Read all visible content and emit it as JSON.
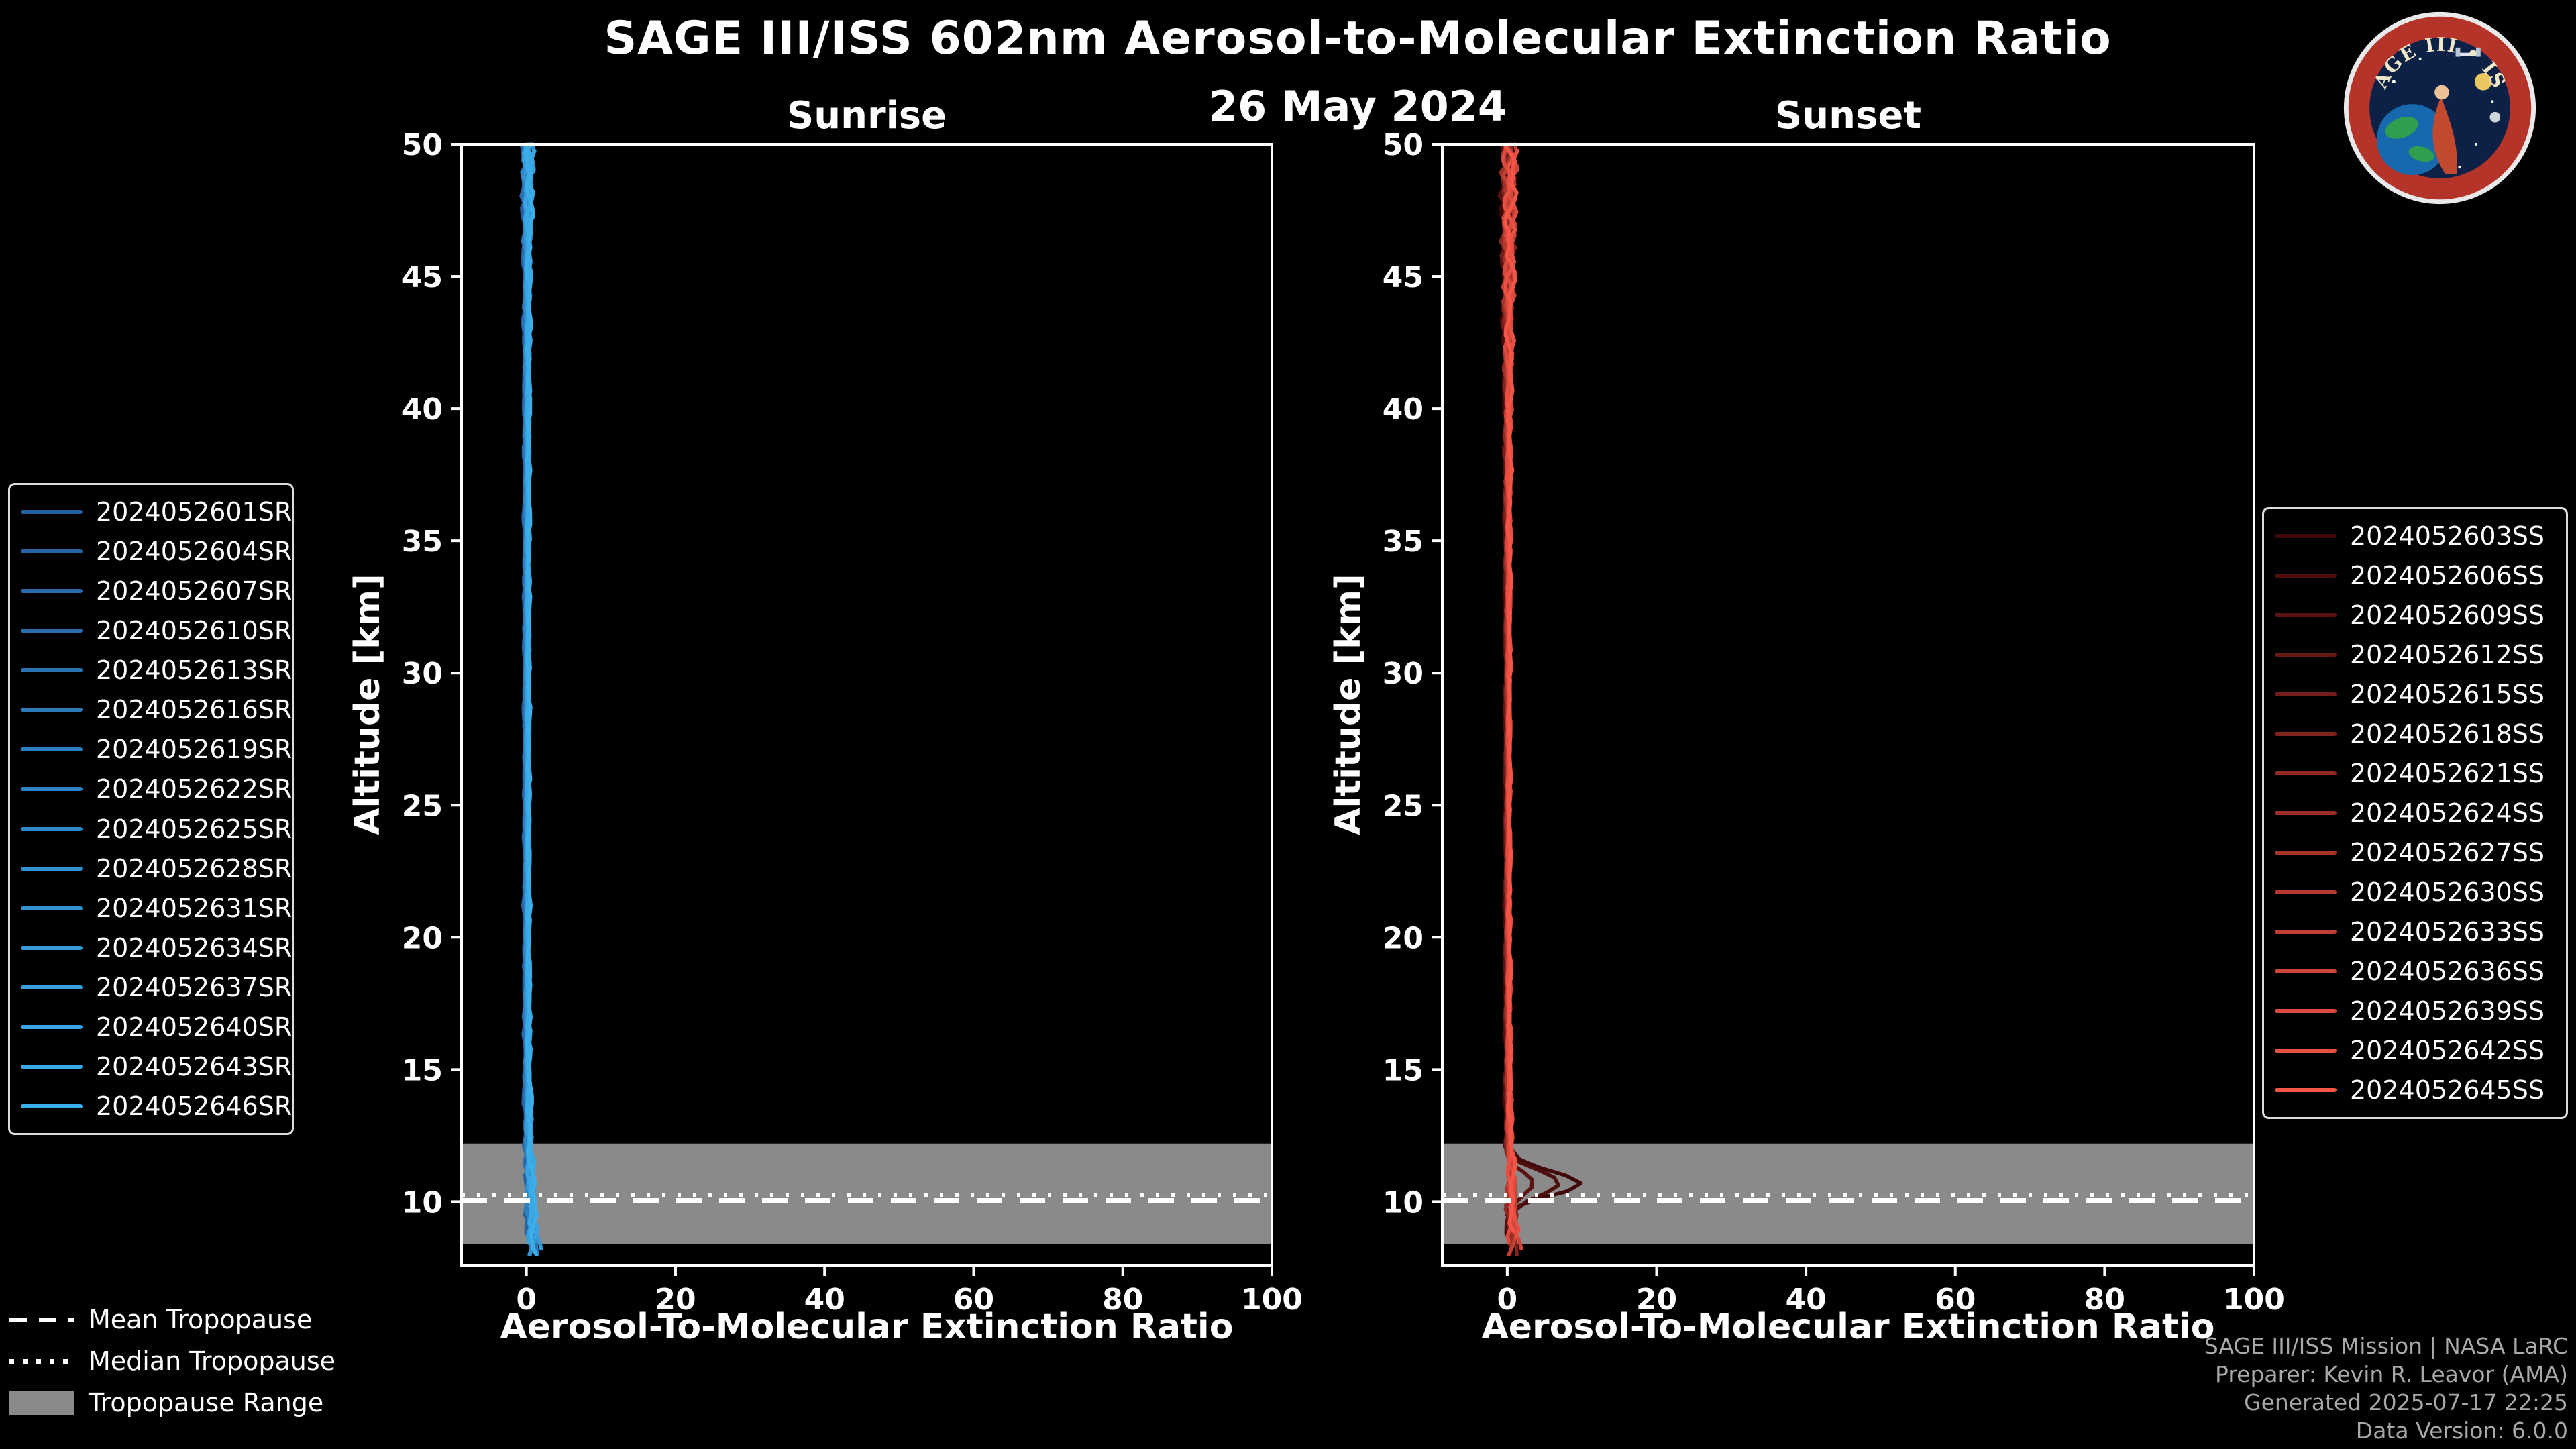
{
  "page": {
    "title": "SAGE III/ISS 602nm Aerosol-to-Molecular Extinction Ratio",
    "date": "26 May 2024",
    "background": "#000000",
    "text_color": "#ffffff"
  },
  "logo": {
    "text": "SAGE III • ISS"
  },
  "chart_data": [
    {
      "id": "sunrise",
      "type": "line",
      "title": "Sunrise",
      "xlabel": "Aerosol-To-Molecular Extinction Ratio",
      "ylabel": "Altitude [km]",
      "xlim": [
        -8.7,
        100
      ],
      "ylim": [
        7.6,
        50
      ],
      "xticks": [
        0,
        20,
        40,
        60,
        80,
        100
      ],
      "yticks": [
        10,
        15,
        20,
        25,
        30,
        35,
        40,
        45,
        50
      ],
      "legend_position": "left",
      "grid": false,
      "series": [
        {
          "name": "2024052601SR",
          "color": "#255FA0"
        },
        {
          "name": "2024052604SR",
          "color": "#2764A5"
        },
        {
          "name": "2024052607SR",
          "color": "#286AAA"
        },
        {
          "name": "2024052610SR",
          "color": "#2A6FAF"
        },
        {
          "name": "2024052613SR",
          "color": "#2B74B4"
        },
        {
          "name": "2024052616SR",
          "color": "#2D7AB9"
        },
        {
          "name": "2024052619SR",
          "color": "#2E7FBE"
        },
        {
          "name": "2024052622SR",
          "color": "#3084C3"
        },
        {
          "name": "2024052625SR",
          "color": "#318AC8"
        },
        {
          "name": "2024052628SR",
          "color": "#338FCD"
        },
        {
          "name": "2024052631SR",
          "color": "#3494D2"
        },
        {
          "name": "2024052634SR",
          "color": "#369AD7"
        },
        {
          "name": "2024052637SR",
          "color": "#379FDC"
        },
        {
          "name": "2024052640SR",
          "color": "#39A4E1"
        },
        {
          "name": "2024052643SR",
          "color": "#3AAAE6"
        },
        {
          "name": "2024052646SR",
          "color": "#3CAFEB"
        }
      ],
      "profile": {
        "altitude": [
          7.6,
          8.5,
          9.5,
          10.5,
          11.5,
          13,
          15,
          20,
          30,
          40,
          45,
          48,
          50
        ],
        "ratio": [
          1.4,
          1.3,
          1.0,
          0.8,
          0.55,
          0.35,
          0.2,
          0.12,
          0.1,
          0.12,
          0.15,
          0.25,
          0.3
        ],
        "spread": [
          0.85,
          0.8,
          0.7,
          0.65,
          0.55,
          0.45,
          0.35,
          0.28,
          0.26,
          0.3,
          0.4,
          0.7,
          0.95
        ]
      },
      "tropopause": {
        "mean_km": 10.05,
        "median_km": 10.25,
        "range_km": [
          8.4,
          12.2
        ],
        "band_color": "#8a8a8a"
      }
    },
    {
      "id": "sunset",
      "type": "line",
      "title": "Sunset",
      "xlabel": "Aerosol-To-Molecular Extinction Ratio",
      "ylabel": "Altitude [km]",
      "xlim": [
        -8.7,
        100
      ],
      "ylim": [
        7.6,
        50
      ],
      "xticks": [
        0,
        20,
        40,
        60,
        80,
        100
      ],
      "yticks": [
        10,
        15,
        20,
        25,
        30,
        35,
        40,
        45,
        50
      ],
      "legend_position": "right",
      "grid": false,
      "series": [
        {
          "name": "2024052603SS",
          "color": "#410808"
        },
        {
          "name": "2024052606SS",
          "color": "#4E0E0C"
        },
        {
          "name": "2024052609SS",
          "color": "#5B1311"
        },
        {
          "name": "2024052612SS",
          "color": "#681915"
        },
        {
          "name": "2024052615SS",
          "color": "#741E1A"
        },
        {
          "name": "2024052618SS",
          "color": "#81241E"
        },
        {
          "name": "2024052621SS",
          "color": "#8E2923"
        },
        {
          "name": "2024052624SS",
          "color": "#9B2F27"
        },
        {
          "name": "2024052627SS",
          "color": "#A8342B"
        },
        {
          "name": "2024052630SS",
          "color": "#B53A30"
        },
        {
          "name": "2024052633SS",
          "color": "#C23F34"
        },
        {
          "name": "2024052636SS",
          "color": "#CE4539"
        },
        {
          "name": "2024052639SS",
          "color": "#DB4A3D"
        },
        {
          "name": "2024052642SS",
          "color": "#E85042"
        },
        {
          "name": "2024052645SS",
          "color": "#F55546"
        }
      ],
      "profile": {
        "altitude": [
          7.6,
          8.5,
          9.5,
          10.5,
          11.5,
          13,
          15,
          20,
          30,
          40,
          45,
          48,
          50
        ],
        "ratio": [
          1.2,
          1.1,
          0.9,
          0.7,
          0.5,
          0.3,
          0.18,
          0.1,
          0.1,
          0.12,
          0.2,
          0.3,
          0.35
        ],
        "spread": [
          0.9,
          0.85,
          0.75,
          0.7,
          0.6,
          0.45,
          0.35,
          0.28,
          0.26,
          0.45,
          0.9,
          1.1,
          1.2
        ]
      },
      "bump": {
        "center_km": 10.7,
        "sigma_km": 0.45,
        "max_ratio": 10,
        "series_count": 3
      },
      "tropopause": {
        "mean_km": 10.05,
        "median_km": 10.25,
        "range_km": [
          8.4,
          12.2
        ],
        "band_color": "#8a8a8a"
      }
    }
  ],
  "tropopause_legend": {
    "items": [
      {
        "label": "Mean Tropopause",
        "style": "dashed",
        "color": "#ffffff"
      },
      {
        "label": "Median Tropopause",
        "style": "dotted",
        "color": "#ffffff"
      },
      {
        "label": "Tropopause Range",
        "style": "band",
        "color": "#8a8a8a"
      }
    ]
  },
  "credits": {
    "lines": [
      "SAGE III/ISS Mission | NASA LaRC",
      "Preparer: Kevin R. Leavor (AMA)",
      "Generated 2025-07-17 22:25",
      "Data Version: 6.0.0"
    ]
  }
}
